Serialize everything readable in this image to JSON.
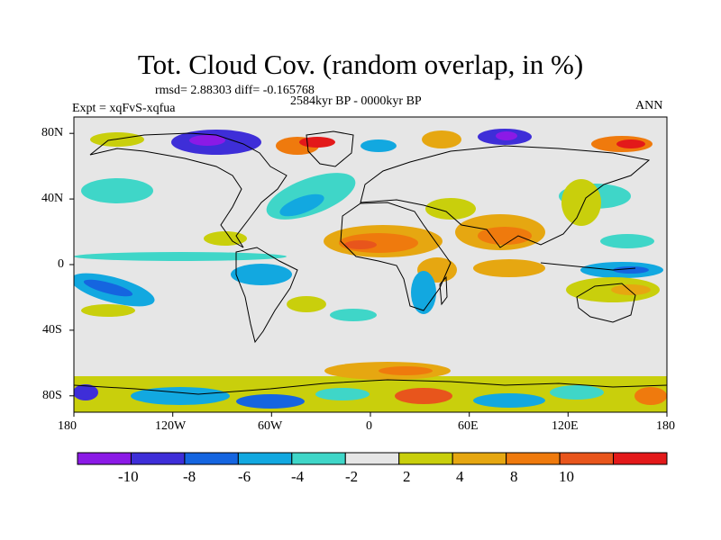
{
  "title": "Tot. Cloud Cov. (random overlap, in %)",
  "stats": "rmsd= 2.88303 diff= -0.165768",
  "experiment": "Expt = xqFvS-xqfua",
  "period": "2584kyr BP - 0000kyr BP",
  "season": "ANN",
  "x_ticks": [
    "180",
    "120W",
    "60W",
    "0",
    "60E",
    "120E",
    "180"
  ],
  "y_ticks": [
    "80N",
    "40N",
    "0",
    "40S",
    "80S"
  ],
  "colorbar": {
    "colors": [
      "#8b1ae6",
      "#3e2ed8",
      "#1565e0",
      "#12a8e0",
      "#3fd6c8",
      "#e6e6e6",
      "#c9cf0c",
      "#e6a711",
      "#ef7a0d",
      "#e8551c",
      "#e3191a"
    ],
    "labels": [
      "-10",
      "-8",
      "-6",
      "-4",
      "-2",
      "2",
      "4",
      "8",
      "10"
    ]
  }
}
